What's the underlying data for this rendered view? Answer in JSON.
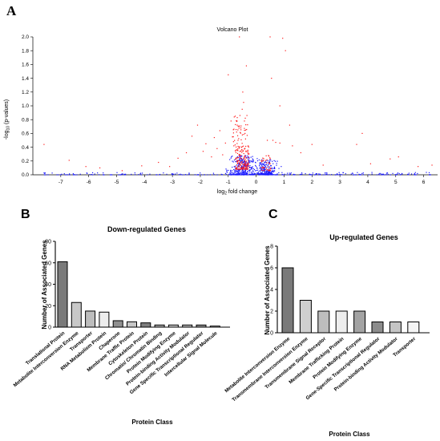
{
  "panel_labels": {
    "a": "A",
    "b": "B",
    "c": "C"
  },
  "chart_data": [
    {
      "type": "scatter",
      "title": "Volcano Plot",
      "xlabel": "log2 fold change",
      "ylabel": "-log10 (p-values)",
      "xlim": [
        -8,
        6.5
      ],
      "ylim": [
        0,
        2.0
      ],
      "x_ticks": [
        -7,
        -6,
        -5,
        -4,
        -3,
        -2,
        -1,
        0,
        1,
        2,
        3,
        4,
        5,
        6
      ],
      "y_ticks": [
        0.0,
        0.2,
        0.4,
        0.6,
        0.8,
        1.0,
        1.2,
        1.4,
        1.6,
        1.8,
        2.0
      ],
      "grid": false,
      "point_colors": {
        "significant": "#ff1a1a",
        "not_significant": "#1a1aff"
      },
      "significant_points": [
        [
          -7.6,
          0.44
        ],
        [
          -6.7,
          0.21
        ],
        [
          -6.1,
          0.12
        ],
        [
          -5.6,
          0.1
        ],
        [
          -4.8,
          0.06
        ],
        [
          -4.1,
          0.13
        ],
        [
          -3.5,
          0.18
        ],
        [
          -3.1,
          0.12
        ],
        [
          -2.8,
          0.24
        ],
        [
          -2.5,
          0.32
        ],
        [
          -2.3,
          0.56
        ],
        [
          -2.1,
          0.72
        ],
        [
          -1.9,
          0.34
        ],
        [
          -1.8,
          0.45
        ],
        [
          -1.6,
          0.26
        ],
        [
          -1.5,
          0.54
        ],
        [
          -1.4,
          0.38
        ],
        [
          -1.3,
          0.64
        ],
        [
          -1.2,
          0.29
        ],
        [
          -1.1,
          0.46
        ],
        [
          -1.0,
          1.45
        ],
        [
          -0.9,
          0.78
        ],
        [
          -0.85,
          0.55
        ],
        [
          -0.8,
          0.42
        ],
        [
          -0.75,
          0.85
        ],
        [
          -0.7,
          0.62
        ],
        [
          -0.68,
          0.72
        ],
        [
          -0.65,
          0.5
        ],
        [
          -0.6,
          2.0
        ],
        [
          -0.58,
          0.86
        ],
        [
          -0.55,
          0.68
        ],
        [
          -0.52,
          0.4
        ],
        [
          -0.5,
          0.95
        ],
        [
          -0.48,
          1.2
        ],
        [
          -0.45,
          1.05
        ],
        [
          -0.42,
          0.78
        ],
        [
          -0.4,
          0.6
        ],
        [
          -0.38,
          0.52
        ],
        [
          -0.35,
          1.58
        ],
        [
          -0.33,
          0.86
        ],
        [
          -0.3,
          0.33
        ],
        [
          0.4,
          0.5
        ],
        [
          0.5,
          2.0
        ],
        [
          0.55,
          1.4
        ],
        [
          0.6,
          0.5
        ],
        [
          0.7,
          0.47
        ],
        [
          0.85,
          0.46
        ],
        [
          0.95,
          1.98
        ],
        [
          1.05,
          1.8
        ],
        [
          0.85,
          1.0
        ],
        [
          1.2,
          0.72
        ],
        [
          1.3,
          0.42
        ],
        [
          1.6,
          0.32
        ],
        [
          2.0,
          0.44
        ],
        [
          2.4,
          0.14
        ],
        [
          3.6,
          0.44
        ],
        [
          3.8,
          0.6
        ],
        [
          4.1,
          0.16
        ],
        [
          4.8,
          0.23
        ],
        [
          5.1,
          0.26
        ],
        [
          5.8,
          0.12
        ],
        [
          6.3,
          0.14
        ]
      ]
    },
    {
      "type": "bar",
      "title": "Down-regulated Genes",
      "xlabel": "Protein Class",
      "ylabel": "Number of Associated Genes",
      "ylim": [
        0,
        80
      ],
      "y_ticks": [
        0,
        20,
        40,
        60,
        80
      ],
      "categories": [
        "Translational Protein",
        "Metabolite Interconversion Enzyme",
        "Transporter",
        "RNA Metabolism Protein",
        "Chaperone",
        "Membrane Traffic Protein",
        "Cytoskeleton Protein",
        "Chromatin/ Chromatin Binding",
        "Protein Modifying Enzyme",
        "Protein-binding Activity Modulator",
        "Gene Specific Transcriptional Regulator",
        "Intercellular Signal Molecule"
      ],
      "values": [
        61,
        23,
        15,
        14,
        6,
        5,
        4,
        2,
        2,
        2,
        2,
        1
      ],
      "bar_colors": [
        "#7a7a7a",
        "#c8c8c8",
        "#bdbdbd",
        "#ededed",
        "#909090",
        "#c6c6c6",
        "#7f7f7f",
        "#a8a8a8",
        "#cfcfcf",
        "#b5b5b5",
        "#8f8f8f",
        "#dedede"
      ]
    },
    {
      "type": "bar",
      "title": "Up-regulated Genes",
      "xlabel": "Protein Class",
      "ylabel": "Number of Associated Genes",
      "ylim": [
        0,
        8
      ],
      "y_ticks": [
        0,
        2,
        4,
        6,
        8
      ],
      "categories": [
        "Metabolite Interconversion Enzyme",
        "Transmembrane Interconversion Enzyme",
        "Transmembrane Signal Receptor",
        "Membrane Trafficking Protein",
        "Protein Modifying Enzyme",
        "Gene-Specific Transcriptional Regulator",
        "Protein-binding Activity Modulator",
        "Transporter"
      ],
      "values": [
        6,
        3,
        2,
        2,
        2,
        1,
        1,
        1
      ],
      "bar_colors": [
        "#7a7a7a",
        "#cfcfcf",
        "#bdbdbd",
        "#ededed",
        "#a3a3a3",
        "#8c8c8c",
        "#c4c4c4",
        "#f4f4f4"
      ]
    }
  ]
}
